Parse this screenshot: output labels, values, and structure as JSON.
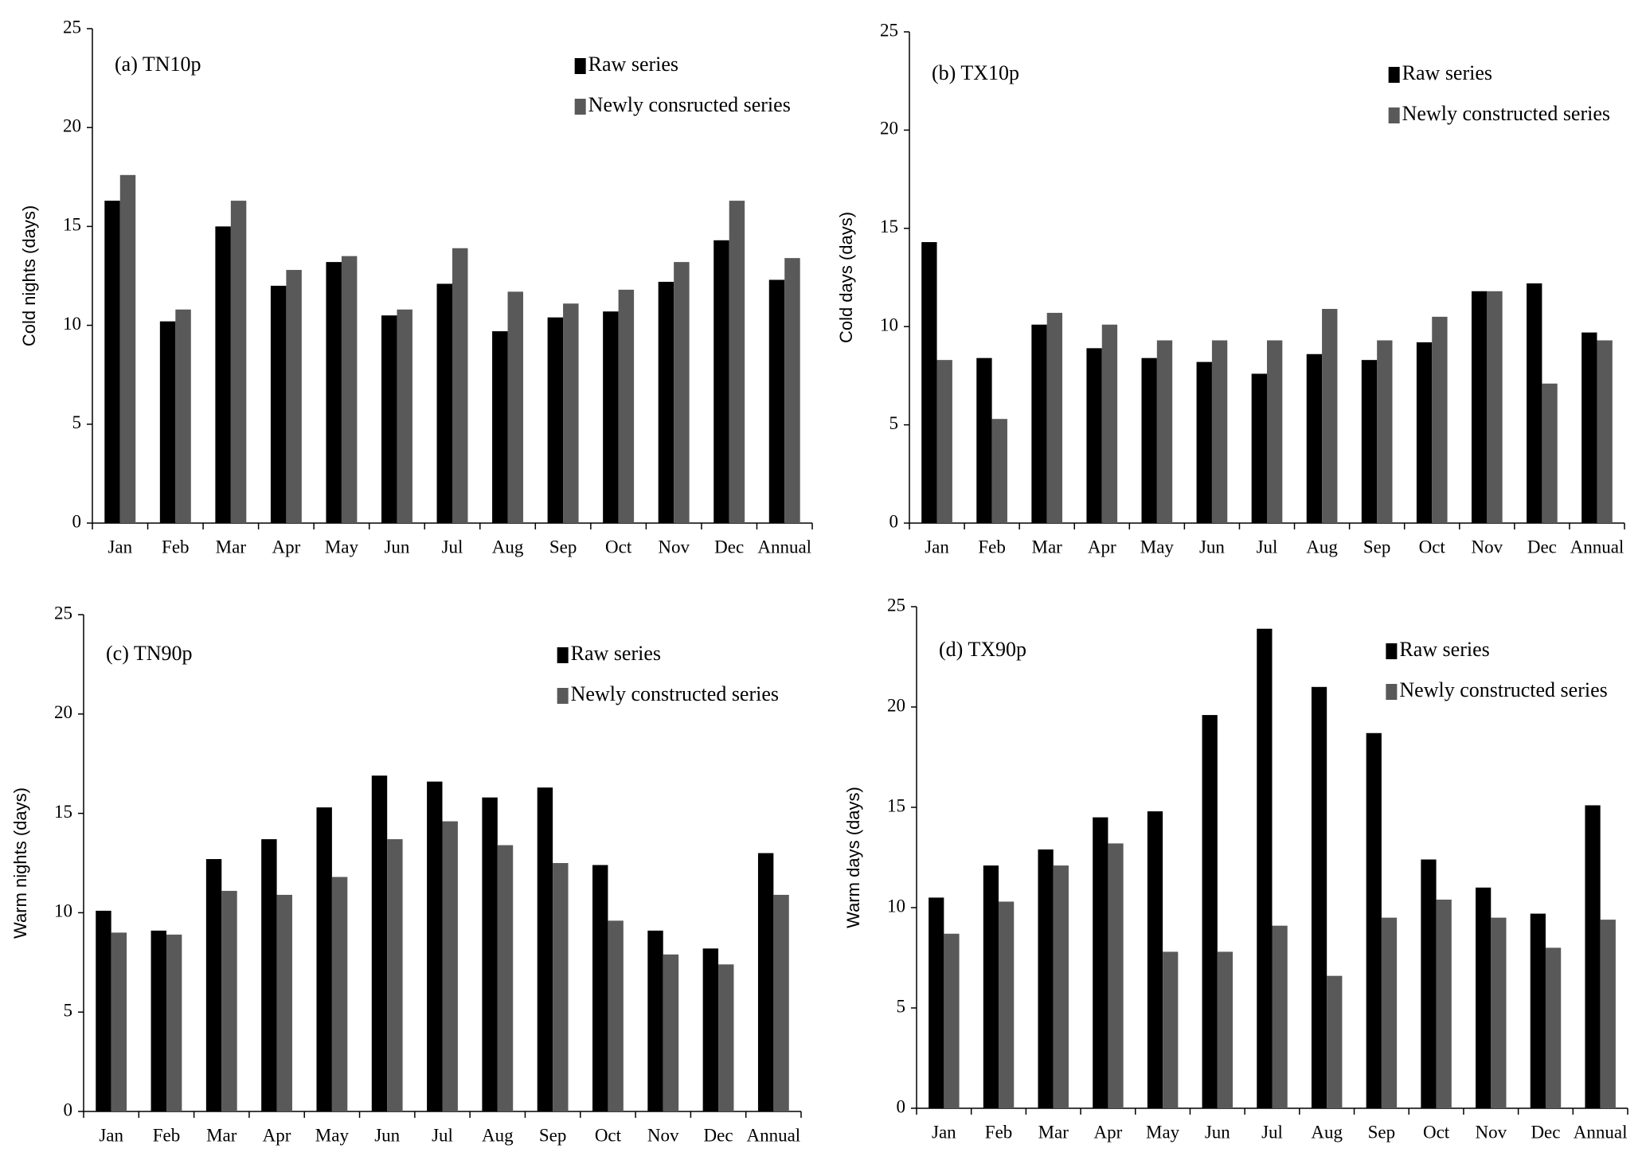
{
  "chart_data": [
    {
      "type": "bar",
      "panel_label": "(a) TN10p",
      "y_label": "Cold nights (days)",
      "categories": [
        "Jan",
        "Feb",
        "Mar",
        "Apr",
        "May",
        "Jun",
        "Jul",
        "Aug",
        "Sep",
        "Oct",
        "Nov",
        "Dec",
        "Annual"
      ],
      "series": [
        {
          "name": "Raw series",
          "color": "#000000",
          "values": [
            16.3,
            10.2,
            15.0,
            12.0,
            13.2,
            10.5,
            12.1,
            9.7,
            10.4,
            10.7,
            12.2,
            14.3,
            12.3
          ]
        },
        {
          "name": "Newly consructed series",
          "color": "#595959",
          "values": [
            17.6,
            10.8,
            16.3,
            12.8,
            13.5,
            10.8,
            13.9,
            11.7,
            11.1,
            11.8,
            13.2,
            16.3,
            13.4
          ]
        }
      ],
      "ylim": [
        0,
        25
      ],
      "yticks": [
        0,
        5,
        10,
        15,
        20,
        25
      ]
    },
    {
      "type": "bar",
      "panel_label": "(b) TX10p",
      "y_label": "Cold days (days)",
      "categories": [
        "Jan",
        "Feb",
        "Mar",
        "Apr",
        "May",
        "Jun",
        "Jul",
        "Aug",
        "Sep",
        "Oct",
        "Nov",
        "Dec",
        "Annual"
      ],
      "series": [
        {
          "name": "Raw series",
          "color": "#000000",
          "values": [
            14.3,
            8.4,
            10.1,
            8.9,
            8.4,
            8.2,
            7.6,
            8.6,
            8.3,
            9.2,
            11.8,
            12.2,
            9.7
          ]
        },
        {
          "name": "Newly constructed series",
          "color": "#595959",
          "values": [
            8.3,
            5.3,
            10.7,
            10.1,
            9.3,
            9.3,
            9.3,
            10.9,
            9.3,
            10.5,
            11.8,
            7.1,
            9.3
          ]
        }
      ],
      "ylim": [
        0,
        25
      ],
      "yticks": [
        0,
        5,
        10,
        15,
        20,
        25
      ]
    },
    {
      "type": "bar",
      "panel_label": "(c) TN90p",
      "y_label": "Warm nights (days)",
      "categories": [
        "Jan",
        "Feb",
        "Mar",
        "Apr",
        "May",
        "Jun",
        "Jul",
        "Aug",
        "Sep",
        "Oct",
        "Nov",
        "Dec",
        "Annual"
      ],
      "series": [
        {
          "name": "Raw series",
          "color": "#000000",
          "values": [
            10.1,
            9.1,
            12.7,
            13.7,
            15.3,
            16.9,
            16.6,
            15.8,
            16.3,
            12.4,
            9.1,
            8.2,
            13.0
          ]
        },
        {
          "name": "Newly constructed series",
          "color": "#595959",
          "values": [
            9.0,
            8.9,
            11.1,
            10.9,
            11.8,
            13.7,
            14.6,
            13.4,
            12.5,
            9.6,
            7.9,
            7.4,
            10.9
          ]
        }
      ],
      "ylim": [
        0,
        25
      ],
      "yticks": [
        0,
        5,
        10,
        15,
        20,
        25
      ]
    },
    {
      "type": "bar",
      "panel_label": "(d) TX90p",
      "y_label": "Warm days (days)",
      "categories": [
        "Jan",
        "Feb",
        "Mar",
        "Apr",
        "May",
        "Jun",
        "Jul",
        "Aug",
        "Sep",
        "Oct",
        "Nov",
        "Dec",
        "Annual"
      ],
      "series": [
        {
          "name": "Raw series",
          "color": "#000000",
          "values": [
            10.5,
            12.1,
            12.9,
            14.5,
            14.8,
            19.6,
            23.9,
            21.0,
            18.7,
            12.4,
            11.0,
            9.7,
            15.1
          ]
        },
        {
          "name": "Newly constructed series",
          "color": "#595959",
          "values": [
            8.7,
            10.3,
            12.1,
            13.2,
            7.8,
            7.8,
            9.1,
            6.6,
            9.5,
            10.4,
            9.5,
            8.0,
            9.4
          ]
        }
      ],
      "ylim": [
        0,
        25
      ],
      "yticks": [
        0,
        5,
        10,
        15,
        20,
        25
      ]
    }
  ]
}
